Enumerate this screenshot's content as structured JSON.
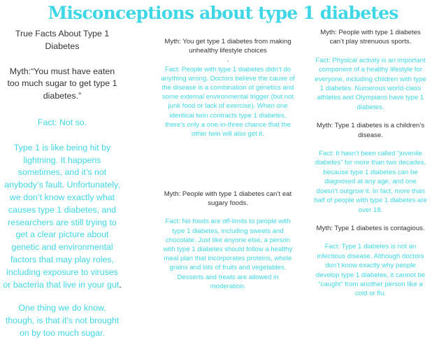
{
  "title": "Misconceptions about type 1 diabetes",
  "col1": {
    "heading": "True Facts About Type 1 Diabetes",
    "myth": "Myth:“You must have eaten too much sugar to get type 1 diabetes.”",
    "fact_label": "Fact: Not so.",
    "body_cyan": "Type 1 is like being hit by lightning. It happens sometimes, and it’s not anybody’s fault. Unfortunately, we don’t know exactly what causes type 1 diabetes, and researchers are still trying to get a clear picture about genetic and environmental factors that may play roles, including exposure to viruses or bacteria that live in your gut",
    "body_end": ".",
    "closing": "One thing we do know, though, is that it’s not brought on by too much sugar."
  },
  "col2": {
    "myth1": "Myth: You get type 1 diabetes from making unhealthy lifestyle choices",
    "myth1_dot": ".",
    "fact1": "Fact: People with type 1 diabetes didn’t do anything wrong. Doctors believe the cause of the disease is a combination of genetics and some external environmental trigger (but not junk food or lack of exercise). When one identical twin contracts type 1 diabetes, there’s only a one-in-three chance that the other twin will also get it.",
    "myth2": "Myth: People with type 1 diabetes can’t eat sugary foods.",
    "fact2": "Fact: No foods are off-limits to people with type 1 diabetes, including sweets and chocolate. Just like anyone else, a person with type 1 diabetes should follow a healthy meal plan that incorporates proteins, whole grains and lots of fruits and vegetables. Desserts and treats are allowed in moderation."
  },
  "col3": {
    "myth1": "Myth: People with type 1 diabetes can’t play strenuous sports.",
    "fact1": "Fact: Physical activity is an important component of a healthy lifestyle for everyone, including children with type 1 diabetes. Numerous world-class athletes and Olympians have type 1 diabetes.",
    "myth2": "Myth: Type 1 diabetes is a children’s disease.",
    "fact2": "Fact: It hasn’t been called “juvenile diabetes” for more than two decades, because type 1 diabetes can be diagnosed at any age, and one doesn’t outgrow it. In fact, more than half of people with type 1 diabetes are over 18.",
    "myth3": "Myth: Type 1 diabetes is contagious.",
    "fact3": "Fact: Type 1 diabetes is not an infectious disease. Although doctors don’t know exactly why people develop type 1 diabetes, it cannot be “caught” from another person like a cold or flu."
  },
  "colors": {
    "title": "#3fd6e6",
    "accent": "#3fd6e6",
    "text": "#333333"
  }
}
